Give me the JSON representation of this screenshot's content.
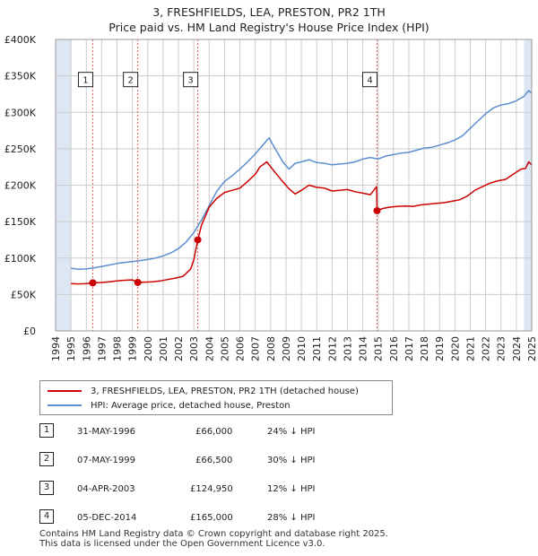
{
  "title": "3, FRESHFIELDS, LEA, PRESTON, PR2 1TH",
  "subtitle": "Price paid vs. HM Land Registry's House Price Index (HPI)",
  "legend": {
    "property": "3, FRESHFIELDS, LEA, PRESTON, PR2 1TH (detached house)",
    "hpi": "HPI: Average price, detached house, Preston"
  },
  "colors": {
    "property": "#cc0000",
    "hpi": "#5b8fd0",
    "shade": "#dde6f3",
    "grid": "#cccccc",
    "marker_line": "#e06060"
  },
  "sales": [
    {
      "label": "1",
      "date": "31-MAY-1996",
      "price": "£66,000",
      "hpi": "24% ↓ HPI"
    },
    {
      "label": "2",
      "date": "07-MAY-1999",
      "price": "£66,500",
      "hpi": "30% ↓ HPI"
    },
    {
      "label": "3",
      "date": "04-APR-2003",
      "price": "£124,950",
      "hpi": "12% ↓ HPI"
    },
    {
      "label": "4",
      "date": "05-DEC-2014",
      "price": "£165,000",
      "hpi": "28% ↓ HPI"
    }
  ],
  "footer": {
    "line1": "Contains HM Land Registry data © Crown copyright and database right 2025.",
    "line2": "This data is licensed under the Open Government Licence v3.0."
  },
  "chart_data": {
    "type": "line",
    "title": "3, FRESHFIELDS, LEA, PRESTON, PR2 1TH",
    "subtitle": "Price paid vs. HM Land Registry's House Price Index (HPI)",
    "xlim": [
      1994,
      2025
    ],
    "ylim": [
      0,
      400000
    ],
    "x_ticks": [
      "1994",
      "1995",
      "1996",
      "1997",
      "1998",
      "1999",
      "2000",
      "2001",
      "2002",
      "2003",
      "2004",
      "2005",
      "2006",
      "2007",
      "2008",
      "2009",
      "2010",
      "2011",
      "2012",
      "2013",
      "2014",
      "2015",
      "2016",
      "2017",
      "2018",
      "2019",
      "2020",
      "2021",
      "2022",
      "2023",
      "2024",
      "2025"
    ],
    "y_ticks": [
      {
        "value": 0,
        "label": "£0"
      },
      {
        "value": 50000,
        "label": "£50K"
      },
      {
        "value": 100000,
        "label": "£100K"
      },
      {
        "value": 150000,
        "label": "£150K"
      },
      {
        "value": 200000,
        "label": "£200K"
      },
      {
        "value": 250000,
        "label": "£250K"
      },
      {
        "value": 300000,
        "label": "£300K"
      },
      {
        "value": 350000,
        "label": "£350K"
      },
      {
        "value": 400000,
        "label": "£400K"
      }
    ],
    "shaded_ranges": [
      [
        1994,
        1995
      ],
      [
        2024.5,
        2025
      ]
    ],
    "series": [
      {
        "name": "3, FRESHFIELDS, LEA, PRESTON, PR2 1TH (detached house)",
        "color": "#cc0000",
        "points": [
          [
            1995.0,
            65000
          ],
          [
            1995.5,
            64500
          ],
          [
            1996.0,
            65000
          ],
          [
            1996.42,
            66000
          ],
          [
            1997.0,
            66500
          ],
          [
            1997.5,
            67500
          ],
          [
            1998.0,
            68500
          ],
          [
            1998.5,
            69500
          ],
          [
            1999.0,
            70000
          ],
          [
            1999.35,
            66500
          ],
          [
            1999.8,
            67000
          ],
          [
            2000.3,
            67500
          ],
          [
            2000.8,
            68500
          ],
          [
            2001.3,
            70500
          ],
          [
            2001.8,
            72500
          ],
          [
            2002.3,
            75000
          ],
          [
            2002.8,
            85000
          ],
          [
            2003.0,
            98000
          ],
          [
            2003.26,
            124950
          ],
          [
            2003.5,
            145000
          ],
          [
            2004.0,
            170000
          ],
          [
            2004.5,
            182000
          ],
          [
            2005.0,
            190000
          ],
          [
            2005.5,
            193000
          ],
          [
            2006.0,
            196000
          ],
          [
            2006.5,
            205000
          ],
          [
            2007.0,
            215000
          ],
          [
            2007.3,
            225000
          ],
          [
            2007.75,
            232000
          ],
          [
            2008.2,
            220000
          ],
          [
            2008.7,
            207000
          ],
          [
            2009.2,
            195000
          ],
          [
            2009.6,
            188000
          ],
          [
            2010.0,
            193000
          ],
          [
            2010.5,
            200000
          ],
          [
            2011.0,
            197000
          ],
          [
            2011.5,
            196000
          ],
          [
            2012.0,
            192000
          ],
          [
            2012.5,
            193000
          ],
          [
            2013.0,
            194000
          ],
          [
            2013.5,
            191000
          ],
          [
            2014.0,
            189000
          ],
          [
            2014.5,
            187000
          ],
          [
            2014.9,
            198000
          ],
          [
            2014.93,
            165000
          ],
          [
            2015.3,
            168000
          ],
          [
            2015.8,
            170000
          ],
          [
            2016.3,
            171000
          ],
          [
            2016.8,
            171500
          ],
          [
            2017.3,
            171000
          ],
          [
            2017.8,
            173000
          ],
          [
            2018.3,
            174000
          ],
          [
            2018.8,
            175000
          ],
          [
            2019.3,
            176000
          ],
          [
            2019.8,
            178000
          ],
          [
            2020.3,
            180000
          ],
          [
            2020.8,
            185000
          ],
          [
            2021.3,
            193000
          ],
          [
            2021.8,
            198000
          ],
          [
            2022.3,
            203000
          ],
          [
            2022.8,
            206000
          ],
          [
            2023.3,
            208000
          ],
          [
            2023.8,
            215000
          ],
          [
            2024.3,
            222000
          ],
          [
            2024.6,
            223000
          ],
          [
            2024.8,
            232000
          ],
          [
            2025.0,
            228000
          ]
        ]
      },
      {
        "name": "HPI: Average price, detached house, Preston",
        "color": "#5b8fd0",
        "points": [
          [
            1995.0,
            86000
          ],
          [
            1995.5,
            84500
          ],
          [
            1996.0,
            85000
          ],
          [
            1996.5,
            86500
          ],
          [
            1997.0,
            88500
          ],
          [
            1997.5,
            90500
          ],
          [
            1998.0,
            92500
          ],
          [
            1998.5,
            94000
          ],
          [
            1999.0,
            95000
          ],
          [
            1999.5,
            96500
          ],
          [
            2000.0,
            98000
          ],
          [
            2000.5,
            100000
          ],
          [
            2001.0,
            103000
          ],
          [
            2001.5,
            107000
          ],
          [
            2002.0,
            113000
          ],
          [
            2002.5,
            122000
          ],
          [
            2003.0,
            135000
          ],
          [
            2003.5,
            152000
          ],
          [
            2004.0,
            172000
          ],
          [
            2004.5,
            192000
          ],
          [
            2005.0,
            205000
          ],
          [
            2005.5,
            213000
          ],
          [
            2006.0,
            222000
          ],
          [
            2006.5,
            232000
          ],
          [
            2007.0,
            243000
          ],
          [
            2007.5,
            255000
          ],
          [
            2007.9,
            265000
          ],
          [
            2008.3,
            250000
          ],
          [
            2008.8,
            232000
          ],
          [
            2009.2,
            222000
          ],
          [
            2009.6,
            230000
          ],
          [
            2010.0,
            232000
          ],
          [
            2010.5,
            235000
          ],
          [
            2011.0,
            231000
          ],
          [
            2011.5,
            230000
          ],
          [
            2012.0,
            228000
          ],
          [
            2012.5,
            229000
          ],
          [
            2013.0,
            230000
          ],
          [
            2013.5,
            232000
          ],
          [
            2014.0,
            236000
          ],
          [
            2014.5,
            238000
          ],
          [
            2015.0,
            236000
          ],
          [
            2015.5,
            240000
          ],
          [
            2016.0,
            242000
          ],
          [
            2016.5,
            244000
          ],
          [
            2017.0,
            245000
          ],
          [
            2017.5,
            248000
          ],
          [
            2018.0,
            251000
          ],
          [
            2018.5,
            252000
          ],
          [
            2019.0,
            255000
          ],
          [
            2019.5,
            258000
          ],
          [
            2020.0,
            262000
          ],
          [
            2020.5,
            268000
          ],
          [
            2021.0,
            278000
          ],
          [
            2021.5,
            288000
          ],
          [
            2022.0,
            298000
          ],
          [
            2022.5,
            306000
          ],
          [
            2023.0,
            310000
          ],
          [
            2023.5,
            312000
          ],
          [
            2024.0,
            316000
          ],
          [
            2024.5,
            322000
          ],
          [
            2024.8,
            330000
          ],
          [
            2025.0,
            326000
          ]
        ]
      }
    ],
    "sale_points": [
      {
        "label": "1",
        "x": 1996.42,
        "y": 66000
      },
      {
        "label": "2",
        "x": 1999.35,
        "y": 66500
      },
      {
        "label": "3",
        "x": 2003.26,
        "y": 124950
      },
      {
        "label": "4",
        "x": 2014.93,
        "y": 165000
      }
    ],
    "marker_label_value": 345000
  }
}
